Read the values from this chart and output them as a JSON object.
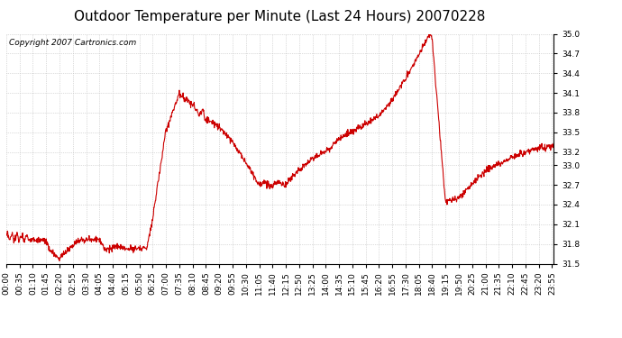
{
  "title": "Outdoor Temperature per Minute (Last 24 Hours) 20070228",
  "copyright_text": "Copyright 2007 Cartronics.com",
  "line_color": "#cc0000",
  "bg_color": "#ffffff",
  "plot_bg_color": "#ffffff",
  "grid_color": "#bbbbbb",
  "ylim": [
    31.5,
    35.0
  ],
  "yticks": [
    31.5,
    31.8,
    32.1,
    32.4,
    32.7,
    33.0,
    33.2,
    33.5,
    33.8,
    34.1,
    34.4,
    34.7,
    35.0
  ],
  "x_tick_labels": [
    "00:00",
    "00:35",
    "01:10",
    "01:45",
    "02:20",
    "02:55",
    "03:30",
    "04:05",
    "04:40",
    "05:15",
    "05:50",
    "06:25",
    "07:00",
    "07:35",
    "08:10",
    "08:45",
    "09:20",
    "09:55",
    "10:30",
    "11:05",
    "11:40",
    "12:15",
    "12:50",
    "13:25",
    "14:00",
    "14:35",
    "15:10",
    "15:45",
    "16:20",
    "16:55",
    "17:30",
    "18:05",
    "18:40",
    "19:15",
    "19:50",
    "20:25",
    "21:00",
    "21:35",
    "22:10",
    "22:45",
    "23:20",
    "23:55"
  ],
  "num_points": 1440,
  "title_fontsize": 11,
  "axis_fontsize": 6.5,
  "copyright_fontsize": 6.5
}
